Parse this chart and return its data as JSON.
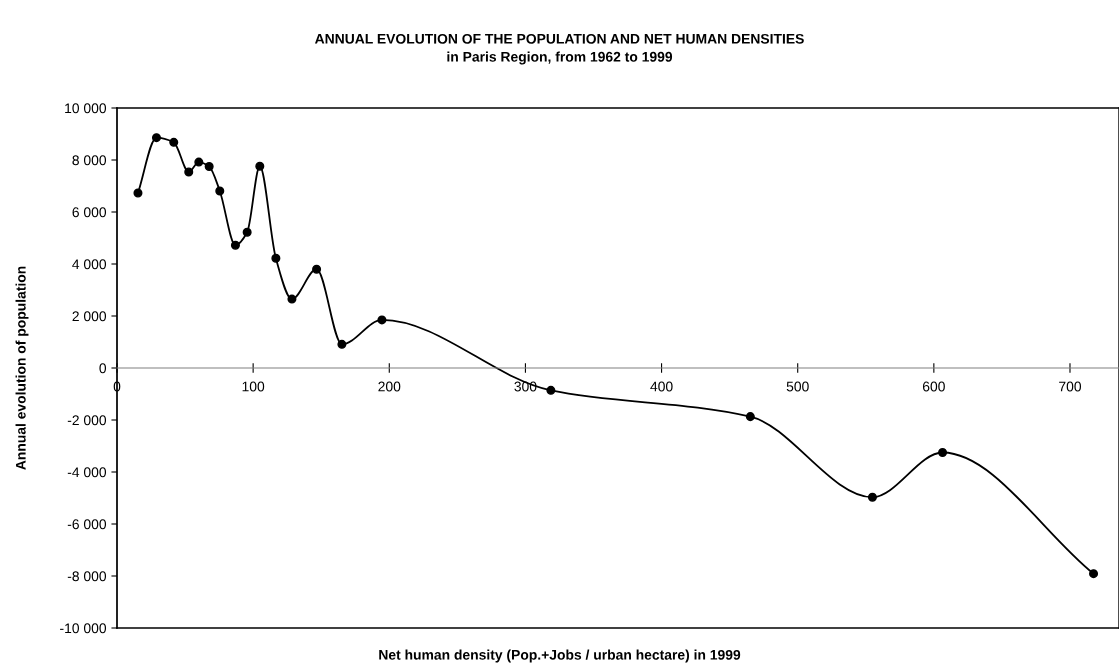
{
  "chart_data": {
    "type": "line",
    "title": "ANNUAL EVOLUTION OF THE POPULATION AND NET HUMAN DENSITIES",
    "subtitle": "in Paris Region, from 1962 to 1999",
    "xlabel": "Net human density (Pop.+Jobs / urban hectare) in 1999",
    "ylabel": "Annual evolution of population",
    "x": [
      15.4,
      29.0,
      41.7,
      52.7,
      60.1,
      67.7,
      75.5,
      87.0,
      95.6,
      104.9,
      116.7,
      128.5,
      146.6,
      165.2,
      194.6,
      318.7,
      465.2,
      554.9,
      606.4,
      717.3
    ],
    "series": [
      {
        "color": "#000000",
        "values": [
          6730,
          8860,
          8680,
          7540,
          7920,
          7750,
          6810,
          4720,
          5220,
          7760,
          4220,
          2650,
          3800,
          910,
          1850,
          -860,
          -1870,
          -4970,
          -3250,
          -7910
        ]
      }
    ],
    "marker": "circle",
    "line_style": "solid",
    "grid": false,
    "legend": false,
    "xlim": [
      0,
      736
    ],
    "xticks": [
      0,
      100,
      200,
      300,
      400,
      500,
      600,
      700
    ],
    "ylim": [
      -10000,
      10000
    ],
    "yticks": [
      {
        "value": -10000,
        "label": "-10 000"
      },
      {
        "value": -8000,
        "label": "-8 000"
      },
      {
        "value": -6000,
        "label": "-6 000"
      },
      {
        "value": -4000,
        "label": "-4 000"
      },
      {
        "value": -2000,
        "label": "-2 000"
      },
      {
        "value": 0,
        "label": "0"
      },
      {
        "value": 2000,
        "label": "2 000"
      },
      {
        "value": 4000,
        "label": "4 000"
      },
      {
        "value": 6000,
        "label": "6 000"
      },
      {
        "value": 8000,
        "label": "8 000"
      },
      {
        "value": 10000,
        "label": "10 000"
      }
    ]
  }
}
